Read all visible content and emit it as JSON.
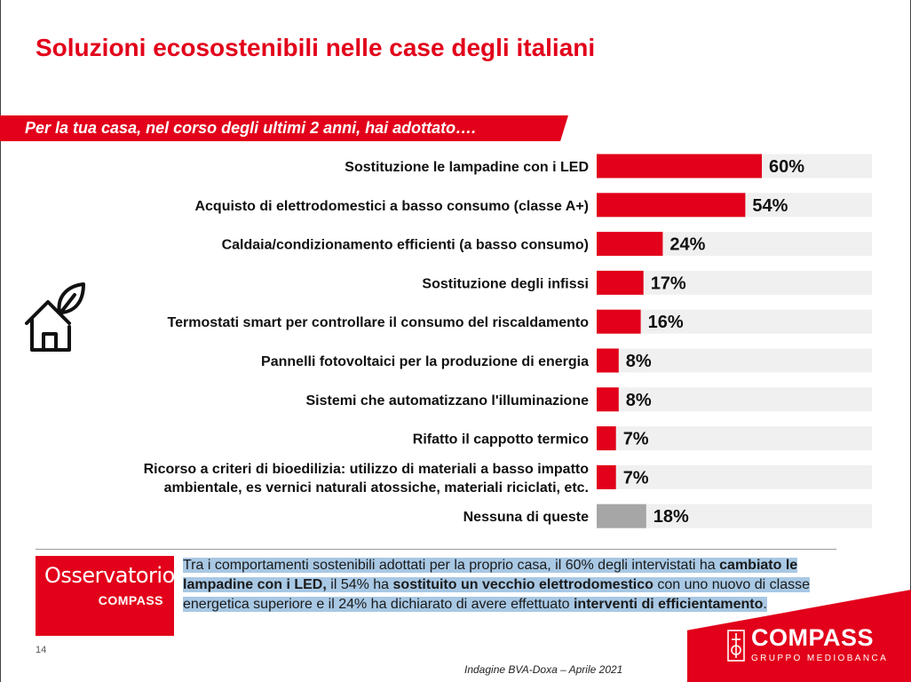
{
  "page": {
    "title": "Soluzioni ecosostenibili nelle case degli italiani",
    "question": "Per la tua casa, nel corso degli ultimi 2 anni, hai adottato….",
    "page_number": "14",
    "source": "Indagine BVA-Doxa – Aprile 2021"
  },
  "chart_data": {
    "type": "bar",
    "orientation": "horizontal",
    "categories": [
      "Sostituzione le lampadine con i LED",
      "Acquisto di elettrodomestici a basso consumo (classe A+)",
      "Caldaia/condizionamento efficienti (a basso consumo)",
      "Sostituzione degli infissi",
      "Termostati smart per controllare il consumo del riscaldamento",
      "Pannelli fotovoltaici per la produzione di energia",
      "Sistemi che automatizzano l'illuminazione",
      "Rifatto il cappotto termico",
      "Ricorso a criteri di bioedilizia: utilizzo di  materiali a basso impatto ambientale, es vernici naturali atossiche,  materiali riciclati, etc.",
      "Nessuna di queste"
    ],
    "category_lines": [
      [
        "Sostituzione le lampadine con i LED"
      ],
      [
        "Acquisto di elettrodomestici a basso consumo (classe A+)"
      ],
      [
        "Caldaia/condizionamento efficienti (a basso consumo)"
      ],
      [
        "Sostituzione degli infissi"
      ],
      [
        "Termostati smart per controllare il consumo del riscaldamento"
      ],
      [
        "Pannelli fotovoltaici per la produzione di energia"
      ],
      [
        "Sistemi che automatizzano l'illuminazione"
      ],
      [
        "Rifatto il cappotto termico"
      ],
      [
        "Ricorso a criteri di bioedilizia: utilizzo di  materiali a basso impatto",
        "ambientale, es vernici naturali atossiche,  materiali riciclati, etc."
      ],
      [
        "Nessuna di queste"
      ]
    ],
    "values": [
      60,
      54,
      24,
      17,
      16,
      8,
      8,
      7,
      7,
      18
    ],
    "value_labels": [
      "60%",
      "54%",
      "24%",
      "17%",
      "16%",
      "8%",
      "8%",
      "7%",
      "7%",
      "18%"
    ],
    "xlim": [
      0,
      100
    ],
    "bar_colors": [
      "#e2001a",
      "#e2001a",
      "#e2001a",
      "#e2001a",
      "#e2001a",
      "#e2001a",
      "#e2001a",
      "#e2001a",
      "#e2001a",
      "#a6a6a6"
    ],
    "track_color": "#f0f0f0",
    "grid": false,
    "legend": "none"
  },
  "osservatorio": {
    "title": "Osservatorio",
    "subtitle": "COMPASS"
  },
  "summary": {
    "part1": "Tra i comportamenti sostenibili adottati per la proprio casa, il 60% degli intervistati ha ",
    "bold1": "cambiato le lampadine con i LED,",
    "part2": " il 54% ha ",
    "bold2": "sostituito un vecchio elettrodomestico",
    "part3": " con uno nuovo di classe energetica superiore e il 24% ha dichiarato di avere effettuato ",
    "bold3": "interventi di efficientamento",
    "part4": "."
  },
  "brand": {
    "name": "COMPASS",
    "tagline": "GRUPPO MEDIOBANCA"
  },
  "icons": {
    "house": "house-leaf-icon",
    "logo": "compass-emblem-icon"
  },
  "colors": {
    "accent": "#e2001a",
    "none_bar": "#a6a6a6",
    "highlight": "#a8c8e4"
  }
}
